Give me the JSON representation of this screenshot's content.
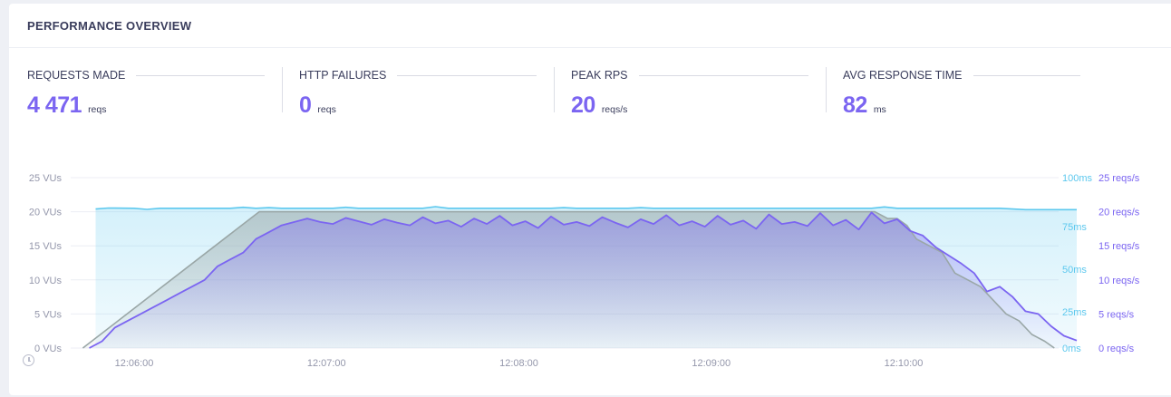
{
  "card": {
    "title": "PERFORMANCE OVERVIEW"
  },
  "stats": [
    {
      "label": "REQUESTS MADE",
      "value": "4 471",
      "unit": "reqs"
    },
    {
      "label": "HTTP FAILURES",
      "value": "0",
      "unit": "reqs"
    },
    {
      "label": "PEAK RPS",
      "value": "20",
      "unit": "reqs/s"
    },
    {
      "label": "AVG RESPONSE TIME",
      "value": "82",
      "unit": "ms"
    }
  ],
  "colors": {
    "accent": "#7b65f1",
    "vus": "#9aa7a7",
    "response_time": "#5cc8ee",
    "grid": "#eceef4",
    "axis_text": "#9497ab"
  },
  "icons": {
    "time_axis": "clock-icon"
  },
  "chart_data": {
    "type": "line",
    "x_ticks": [
      "12:06:00",
      "12:07:00",
      "12:08:00",
      "12:09:00",
      "12:10:00"
    ],
    "y_left": {
      "unit": "VUs",
      "ticks": [
        "0 VUs",
        "5 VUs",
        "10 VUs",
        "15 VUs",
        "20 VUs",
        "25 VUs"
      ],
      "range": [
        0,
        25
      ]
    },
    "y_right_time": {
      "unit": "ms",
      "ticks": [
        "0ms",
        "25ms",
        "50ms",
        "75ms",
        "100ms"
      ],
      "range": [
        0,
        100
      ]
    },
    "y_right_rate": {
      "unit": "reqs/s",
      "ticks": [
        "0 reqs/s",
        "5 reqs/s",
        "10 reqs/s",
        "15 reqs/s",
        "20 reqs/s",
        "25 reqs/s"
      ],
      "range": [
        0,
        25
      ]
    },
    "series": [
      {
        "axis": "y_left",
        "color": "#9aa7a7",
        "points": [
          [
            "12:05:44",
            0
          ],
          [
            "12:06:39",
            20
          ],
          [
            "12:09:51",
            20
          ],
          [
            "12:09:55",
            19
          ],
          [
            "12:09:58",
            19
          ],
          [
            "12:10:01",
            18
          ],
          [
            "12:10:04",
            16
          ],
          [
            "12:10:08",
            15
          ],
          [
            "12:10:12",
            14
          ],
          [
            "12:10:16",
            11
          ],
          [
            "12:10:20",
            10
          ],
          [
            "12:10:24",
            9
          ],
          [
            "12:10:28",
            7
          ],
          [
            "12:10:32",
            5
          ],
          [
            "12:10:36",
            4
          ],
          [
            "12:10:40",
            2
          ],
          [
            "12:10:44",
            1
          ],
          [
            "12:10:47",
            0
          ]
        ]
      },
      {
        "axis": "y_right_rate",
        "color": "#7b65f1",
        "points": [
          [
            "12:05:46",
            0
          ],
          [
            "12:05:50",
            1
          ],
          [
            "12:05:54",
            3
          ],
          [
            "12:05:58",
            4
          ],
          [
            "12:06:02",
            5
          ],
          [
            "12:06:06",
            6
          ],
          [
            "12:06:10",
            7
          ],
          [
            "12:06:14",
            8
          ],
          [
            "12:06:18",
            9
          ],
          [
            "12:06:22",
            10
          ],
          [
            "12:06:26",
            12
          ],
          [
            "12:06:30",
            13
          ],
          [
            "12:06:34",
            14
          ],
          [
            "12:06:38",
            16
          ],
          [
            "12:06:42",
            17
          ],
          [
            "12:06:46",
            18
          ],
          [
            "12:06:50",
            18.5
          ],
          [
            "12:06:54",
            19
          ],
          [
            "12:06:58",
            18.5
          ],
          [
            "12:07:02",
            18.2
          ],
          [
            "12:07:06",
            19.1
          ],
          [
            "12:07:10",
            18.6
          ],
          [
            "12:07:14",
            18.1
          ],
          [
            "12:07:18",
            18.9
          ],
          [
            "12:07:22",
            18.4
          ],
          [
            "12:07:26",
            18.0
          ],
          [
            "12:07:30",
            19.2
          ],
          [
            "12:07:34",
            18.3
          ],
          [
            "12:07:38",
            18.7
          ],
          [
            "12:07:42",
            17.8
          ],
          [
            "12:07:46",
            19.0
          ],
          [
            "12:07:50",
            18.2
          ],
          [
            "12:07:54",
            19.4
          ],
          [
            "12:07:58",
            18.0
          ],
          [
            "12:08:02",
            18.6
          ],
          [
            "12:08:06",
            17.6
          ],
          [
            "12:08:10",
            19.3
          ],
          [
            "12:08:14",
            18.1
          ],
          [
            "12:08:18",
            18.5
          ],
          [
            "12:08:22",
            17.9
          ],
          [
            "12:08:26",
            19.2
          ],
          [
            "12:08:30",
            18.4
          ],
          [
            "12:08:34",
            17.7
          ],
          [
            "12:08:38",
            18.9
          ],
          [
            "12:08:42",
            18.2
          ],
          [
            "12:08:46",
            19.5
          ],
          [
            "12:08:50",
            18.0
          ],
          [
            "12:08:54",
            18.6
          ],
          [
            "12:08:58",
            17.8
          ],
          [
            "12:09:02",
            19.4
          ],
          [
            "12:09:06",
            18.1
          ],
          [
            "12:09:10",
            18.7
          ],
          [
            "12:09:14",
            17.5
          ],
          [
            "12:09:18",
            19.6
          ],
          [
            "12:09:22",
            18.2
          ],
          [
            "12:09:26",
            18.5
          ],
          [
            "12:09:30",
            17.9
          ],
          [
            "12:09:34",
            19.8
          ],
          [
            "12:09:38",
            18.0
          ],
          [
            "12:09:42",
            18.8
          ],
          [
            "12:09:46",
            17.4
          ],
          [
            "12:09:50",
            19.9
          ],
          [
            "12:09:54",
            18.3
          ],
          [
            "12:09:58",
            18.9
          ],
          [
            "12:10:02",
            17.2
          ],
          [
            "12:10:06",
            16.5
          ],
          [
            "12:10:10",
            14.8
          ],
          [
            "12:10:14",
            13.6
          ],
          [
            "12:10:18",
            12.4
          ],
          [
            "12:10:22",
            11.0
          ],
          [
            "12:10:26",
            8.3
          ],
          [
            "12:10:30",
            9.0
          ],
          [
            "12:10:34",
            7.5
          ],
          [
            "12:10:38",
            5.4
          ],
          [
            "12:10:42",
            5.0
          ],
          [
            "12:10:46",
            3.2
          ],
          [
            "12:10:50",
            1.8
          ],
          [
            "12:10:54",
            1.1
          ]
        ]
      },
      {
        "axis": "y_right_time",
        "color": "#5cc8ee",
        "points": [
          [
            "12:05:48",
            81.6
          ],
          [
            "12:05:52",
            82.2
          ],
          [
            "12:06:00",
            82.0
          ],
          [
            "12:06:04",
            81.4
          ],
          [
            "12:06:08",
            82.0
          ],
          [
            "12:06:30",
            82.0
          ],
          [
            "12:06:34",
            82.6
          ],
          [
            "12:06:38",
            82.0
          ],
          [
            "12:06:42",
            82.4
          ],
          [
            "12:06:46",
            82.0
          ],
          [
            "12:07:02",
            82.0
          ],
          [
            "12:07:06",
            82.6
          ],
          [
            "12:07:10",
            82.0
          ],
          [
            "12:07:30",
            82.0
          ],
          [
            "12:07:34",
            83.0
          ],
          [
            "12:07:38",
            82.0
          ],
          [
            "12:08:10",
            82.0
          ],
          [
            "12:08:14",
            82.4
          ],
          [
            "12:08:18",
            82.0
          ],
          [
            "12:08:34",
            82.0
          ],
          [
            "12:08:38",
            82.4
          ],
          [
            "12:08:42",
            82.0
          ],
          [
            "12:09:50",
            82.0
          ],
          [
            "12:09:54",
            82.8
          ],
          [
            "12:09:58",
            82.0
          ],
          [
            "12:10:30",
            82.0
          ],
          [
            "12:10:34",
            81.6
          ],
          [
            "12:10:38",
            81.2
          ],
          [
            "12:10:54",
            81.2
          ]
        ]
      }
    ]
  }
}
